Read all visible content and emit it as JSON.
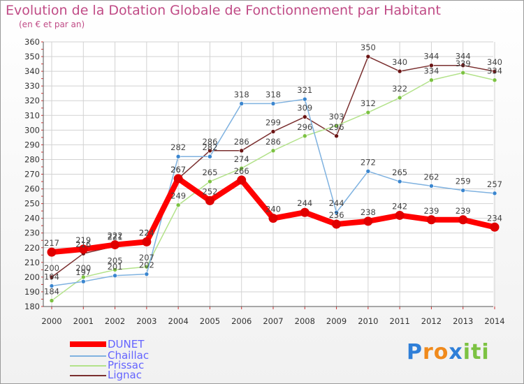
{
  "header": {
    "title": "Evolution de la Dotation Globale de Fonctionnement par Habitant",
    "subtitle": "(en € et par an)"
  },
  "logo": {
    "letters": [
      "P",
      "r",
      "o",
      "x",
      "i",
      "t",
      "i"
    ],
    "colors": [
      "#2f7fd8",
      "#f08a1c",
      "#f08a1c",
      "#2f7fd8",
      "#7cc242",
      "#7cc242",
      "#7cc242"
    ]
  },
  "chart_data": {
    "type": "line",
    "title": "Evolution de la Dotation Globale de Fonctionnement par Habitant",
    "subtitle": "(en € et par an)",
    "x": [
      "2000",
      "2001",
      "2002",
      "2003",
      "2004",
      "2005",
      "2006",
      "2007",
      "2008",
      "2009",
      "2010",
      "2011",
      "2012",
      "2013",
      "2014"
    ],
    "ylim": [
      180,
      360
    ],
    "yticks": [
      180,
      190,
      200,
      210,
      220,
      230,
      240,
      250,
      260,
      270,
      280,
      290,
      300,
      310,
      320,
      330,
      340,
      350,
      360
    ],
    "grid": true,
    "legend_position": "bottom-left",
    "series": [
      {
        "name": "Lignac",
        "color": "#7a2f2f",
        "marker": "#6b1414",
        "width": 1.5,
        "values": [
          200,
          216,
          221,
          224,
          267,
          286,
          286,
          299,
          309,
          296,
          350,
          340,
          344,
          344,
          340
        ]
      },
      {
        "name": "Prissac",
        "color": "#b3e28a",
        "marker": "#7cc242",
        "width": 1.5,
        "values": [
          184,
          200,
          205,
          207,
          249,
          265,
          274,
          286,
          296,
          303,
          312,
          322,
          334,
          339,
          334
        ]
      },
      {
        "name": "Chaillac",
        "color": "#7fb2e0",
        "marker": "#3b86cf",
        "width": 1.5,
        "values": [
          194,
          197,
          201,
          202,
          282,
          282,
          318,
          318,
          321,
          244,
          272,
          265,
          262,
          259,
          257
        ]
      },
      {
        "name": "DUNET",
        "color": "#ff0000",
        "marker": "#e00000",
        "width": 8,
        "values": [
          217,
          219,
          222,
          224,
          267,
          252,
          266,
          240,
          244,
          236,
          238,
          242,
          239,
          239,
          234
        ]
      }
    ]
  }
}
